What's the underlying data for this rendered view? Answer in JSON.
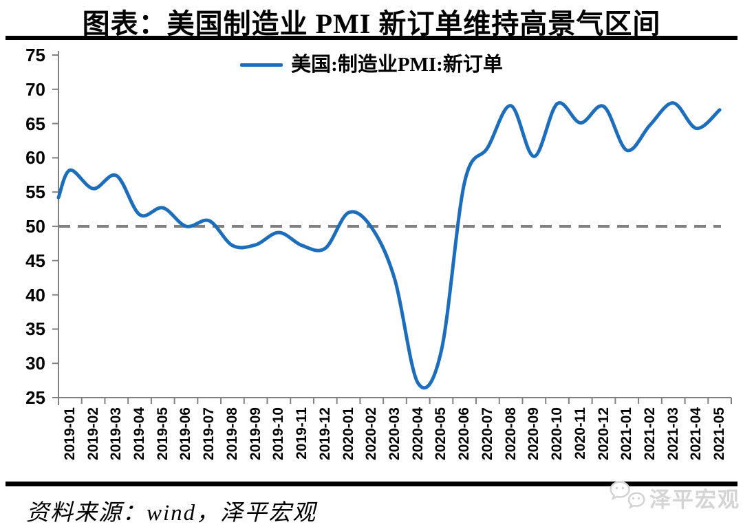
{
  "title": "图表：美国制造业 PMI 新订单维持高景气区间",
  "legend": {
    "label": "美国:制造业PMI:新订单"
  },
  "source": {
    "text": "资料来源：wind，泽平宏观"
  },
  "watermark": {
    "text": "泽平宏观",
    "icon": "chat-bubbles-icon"
  },
  "colors": {
    "line": "#1B6DBE",
    "reference_dash": "#7F7F7F",
    "axis": "#808080",
    "watermark": "#D4D4D4",
    "rule": "#000000"
  },
  "chart_data": {
    "type": "line",
    "smoothed": true,
    "title": "图表：美国制造业 PMI 新订单维持高景气区间",
    "legend_entries": [
      "美国:制造业PMI:新订单"
    ],
    "legend_position": "top-center",
    "grid": false,
    "ylim": [
      25,
      75
    ],
    "yticks": [
      25,
      30,
      35,
      40,
      45,
      50,
      55,
      60,
      65,
      70,
      75
    ],
    "reference_line": {
      "value": 50,
      "style": "dashed"
    },
    "axis_start_value": 54.2,
    "x": [
      "2019-01",
      "2019-02",
      "2019-03",
      "2019-04",
      "2019-05",
      "2019-06",
      "2019-07",
      "2019-08",
      "2019-09",
      "2019-10",
      "2019-11",
      "2019-12",
      "2020-01",
      "2020-02",
      "2020-03",
      "2020-04",
      "2020-05",
      "2020-06",
      "2020-07",
      "2020-08",
      "2020-09",
      "2020-10",
      "2020-11",
      "2020-12",
      "2021-01",
      "2021-02",
      "2021-03",
      "2021-04",
      "2021-05"
    ],
    "series": [
      {
        "name": "美国:制造业PMI:新订单",
        "values": [
          58.2,
          55.5,
          57.4,
          51.7,
          52.7,
          50.0,
          50.8,
          47.2,
          47.3,
          49.1,
          47.2,
          46.8,
          52.0,
          49.8,
          42.2,
          27.1,
          31.8,
          56.4,
          61.5,
          67.6,
          60.2,
          67.9,
          65.1,
          67.5,
          61.1,
          64.8,
          68.0,
          64.3,
          67.0
        ]
      }
    ]
  }
}
